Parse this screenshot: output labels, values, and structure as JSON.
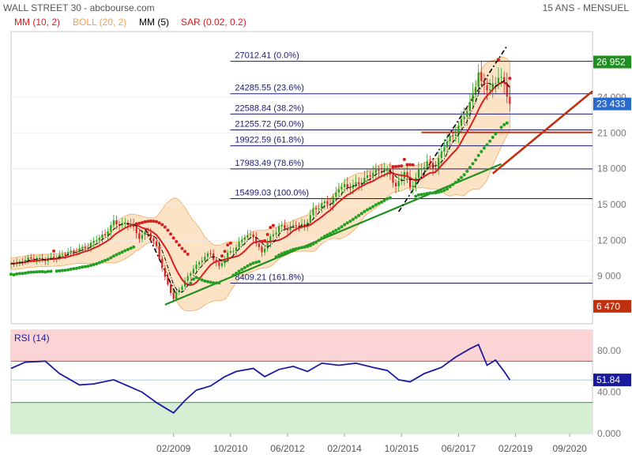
{
  "header": {
    "title": "WALL STREET 30 - abcbourse.com",
    "period": "15 ANS - MENSUEL",
    "indicators": [
      {
        "label": "MM (10, 2)",
        "color": "#d62020"
      },
      {
        "label": "BOLL (20, 2)",
        "color": "#f0a050"
      },
      {
        "label": "MM (5)",
        "color": "#000000"
      },
      {
        "label": "SAR (0.02, 0.2)",
        "color": "#d62020"
      }
    ]
  },
  "colors": {
    "up": "#22a022",
    "down": "#d62020",
    "boll_fill": "#fde0c0",
    "boll_line": "#f0a050",
    "support": "#1f8f1f",
    "resistance": "#c03010",
    "rsi_line": "#1a1aa0",
    "rsi_high_zone": "#fbd5d5",
    "rsi_low_zone": "#d5efd5"
  },
  "chart_data": [
    {
      "type": "line",
      "title": "WALL STREET 30 - abcbourse.com",
      "subtitle": "15 ANS - MENSUEL",
      "x_ticks": [
        "02/2009",
        "10/2010",
        "06/2012",
        "02/2014",
        "10/2015",
        "06/2017",
        "02/2019",
        "09/2020"
      ],
      "y_ticks": [
        "24 000",
        "21 000",
        "18 000",
        "15 000",
        "12 000",
        "9 000"
      ],
      "ylim": [
        5000,
        29500
      ],
      "x_domain": [
        "2004-05",
        "2021-05"
      ],
      "price_labels": [
        {
          "text": "26 952",
          "value": 26952,
          "color": "#1f8f1f"
        },
        {
          "text": "23 433",
          "value": 23433,
          "color": "#2a6acb"
        },
        {
          "text": "6 470",
          "value": 6470,
          "color": "#c03010"
        }
      ],
      "fibonacci": [
        {
          "label": "27012.41  (0.0%)",
          "value": 27012.41
        },
        {
          "label": "24285.55  (23.6%)",
          "value": 24285.55
        },
        {
          "label": "22588.84  (38.2%)",
          "value": 22588.84
        },
        {
          "label": "21255.72  (50.0%)",
          "value": 21255.72
        },
        {
          "label": "19922.59  (61.8%)",
          "value": 19922.59
        },
        {
          "label": "17983.49  (78.6%)",
          "value": 17983.49
        },
        {
          "label": "15499.03  (100.0%)",
          "value": 15499.03
        },
        {
          "label": "8409.21  (161.8%)",
          "value": 8409.21
        }
      ],
      "trendlines": [
        {
          "name": "support",
          "from": [
            "2008-11",
            6600
          ],
          "to": [
            "2018-09",
            18400
          ]
        },
        {
          "name": "resistance",
          "from": [
            "2018-06",
            17600
          ],
          "to": [
            "2021-05",
            24500
          ]
        },
        {
          "name": "resistance-horizontal",
          "from": [
            "2016-05",
            21050
          ],
          "to": [
            "2021-05",
            21050
          ]
        },
        {
          "name": "mm5-trend-1",
          "from": [
            "2008-04",
            13000
          ],
          "to": [
            "2009-03",
            7400
          ]
        },
        {
          "name": "mm5-trend-2",
          "from": [
            "2015-09",
            14400
          ],
          "to": [
            "2018-11",
            28300
          ]
        }
      ],
      "series": [
        {
          "name": "WALL STREET 30",
          "x": [
            "2004-05",
            "2004-08",
            "2004-11",
            "2005-02",
            "2005-05",
            "2005-08",
            "2005-11",
            "2006-02",
            "2006-05",
            "2006-08",
            "2006-11",
            "2007-02",
            "2007-05",
            "2007-08",
            "2007-11",
            "2008-02",
            "2008-05",
            "2008-08",
            "2008-11",
            "2009-02",
            "2009-03",
            "2009-06",
            "2009-09",
            "2009-12",
            "2010-03",
            "2010-06",
            "2010-09",
            "2010-12",
            "2011-03",
            "2011-06",
            "2011-09",
            "2011-12",
            "2012-03",
            "2012-06",
            "2012-09",
            "2012-12",
            "2013-03",
            "2013-06",
            "2013-09",
            "2013-12",
            "2014-03",
            "2014-06",
            "2014-09",
            "2014-12",
            "2015-03",
            "2015-06",
            "2015-08",
            "2015-11",
            "2016-01",
            "2016-04",
            "2016-07",
            "2016-10",
            "2017-01",
            "2017-04",
            "2017-07",
            "2017-10",
            "2018-01",
            "2018-02",
            "2018-05",
            "2018-08",
            "2018-10",
            "2018-12"
          ],
          "values": [
            10100,
            10200,
            10400,
            10500,
            10300,
            10600,
            10800,
            11000,
            11300,
            11400,
            12200,
            12400,
            13600,
            13300,
            13400,
            12300,
            12600,
            11500,
            8800,
            7100,
            7600,
            8500,
            9700,
            10400,
            10900,
            9800,
            10800,
            11500,
            12300,
            12400,
            10900,
            12200,
            13200,
            12900,
            13400,
            13100,
            14600,
            15000,
            15100,
            16500,
            16400,
            16800,
            17000,
            17800,
            17900,
            17600,
            16500,
            17700,
            16400,
            17800,
            18400,
            18200,
            19900,
            20900,
            21900,
            23400,
            26200,
            25000,
            24600,
            25900,
            24900,
            23433
          ]
        },
        {
          "name": "RSI (14)",
          "ylim": [
            0,
            100
          ],
          "y_ticks": [
            "80.00",
            "40.00",
            "0.000"
          ],
          "last_value_label": "51.84",
          "last_value": 51.84,
          "x": [
            "2004-05",
            "2004-10",
            "2005-05",
            "2005-10",
            "2006-05",
            "2006-10",
            "2007-05",
            "2007-10",
            "2008-03",
            "2008-08",
            "2008-11",
            "2009-02",
            "2009-06",
            "2009-10",
            "2010-03",
            "2010-08",
            "2010-12",
            "2011-06",
            "2011-10",
            "2012-03",
            "2012-08",
            "2013-01",
            "2013-06",
            "2013-12",
            "2014-06",
            "2014-12",
            "2015-05",
            "2015-09",
            "2016-01",
            "2016-06",
            "2016-12",
            "2017-05",
            "2017-10",
            "2018-01",
            "2018-04",
            "2018-07",
            "2018-10",
            "2018-12"
          ],
          "values": [
            63,
            69,
            70,
            58,
            47,
            48,
            52,
            46,
            40,
            30,
            25,
            20,
            32,
            42,
            46,
            55,
            60,
            63,
            55,
            62,
            65,
            60,
            68,
            66,
            68,
            64,
            61,
            52,
            50,
            58,
            64,
            74,
            82,
            86,
            66,
            71,
            60,
            51.84
          ]
        }
      ]
    }
  ]
}
